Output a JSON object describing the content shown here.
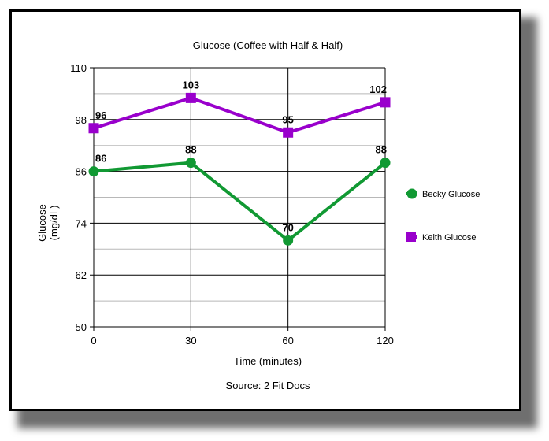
{
  "chart_data": {
    "type": "line",
    "title": "Glucose (Coffee with Half & Half)",
    "xlabel": "Time (minutes)",
    "ylabel_lines": [
      "Glucose",
      "(mg/dL)"
    ],
    "categories": [
      "0",
      "30",
      "60",
      "120"
    ],
    "ylim": [
      50,
      110
    ],
    "yticks": [
      50,
      62,
      74,
      86,
      98,
      110
    ],
    "minor_gridlines": true,
    "grid": true,
    "legend_position": "right",
    "series": [
      {
        "name": "Becky Glucose",
        "values": [
          86,
          88,
          70,
          88
        ],
        "color": "#119933",
        "marker": "circle"
      },
      {
        "name": "Keith Glucose",
        "values": [
          96,
          103,
          95,
          102
        ],
        "color": "#9900cc",
        "marker": "square"
      }
    ],
    "source": "Source: 2 Fit Docs"
  }
}
